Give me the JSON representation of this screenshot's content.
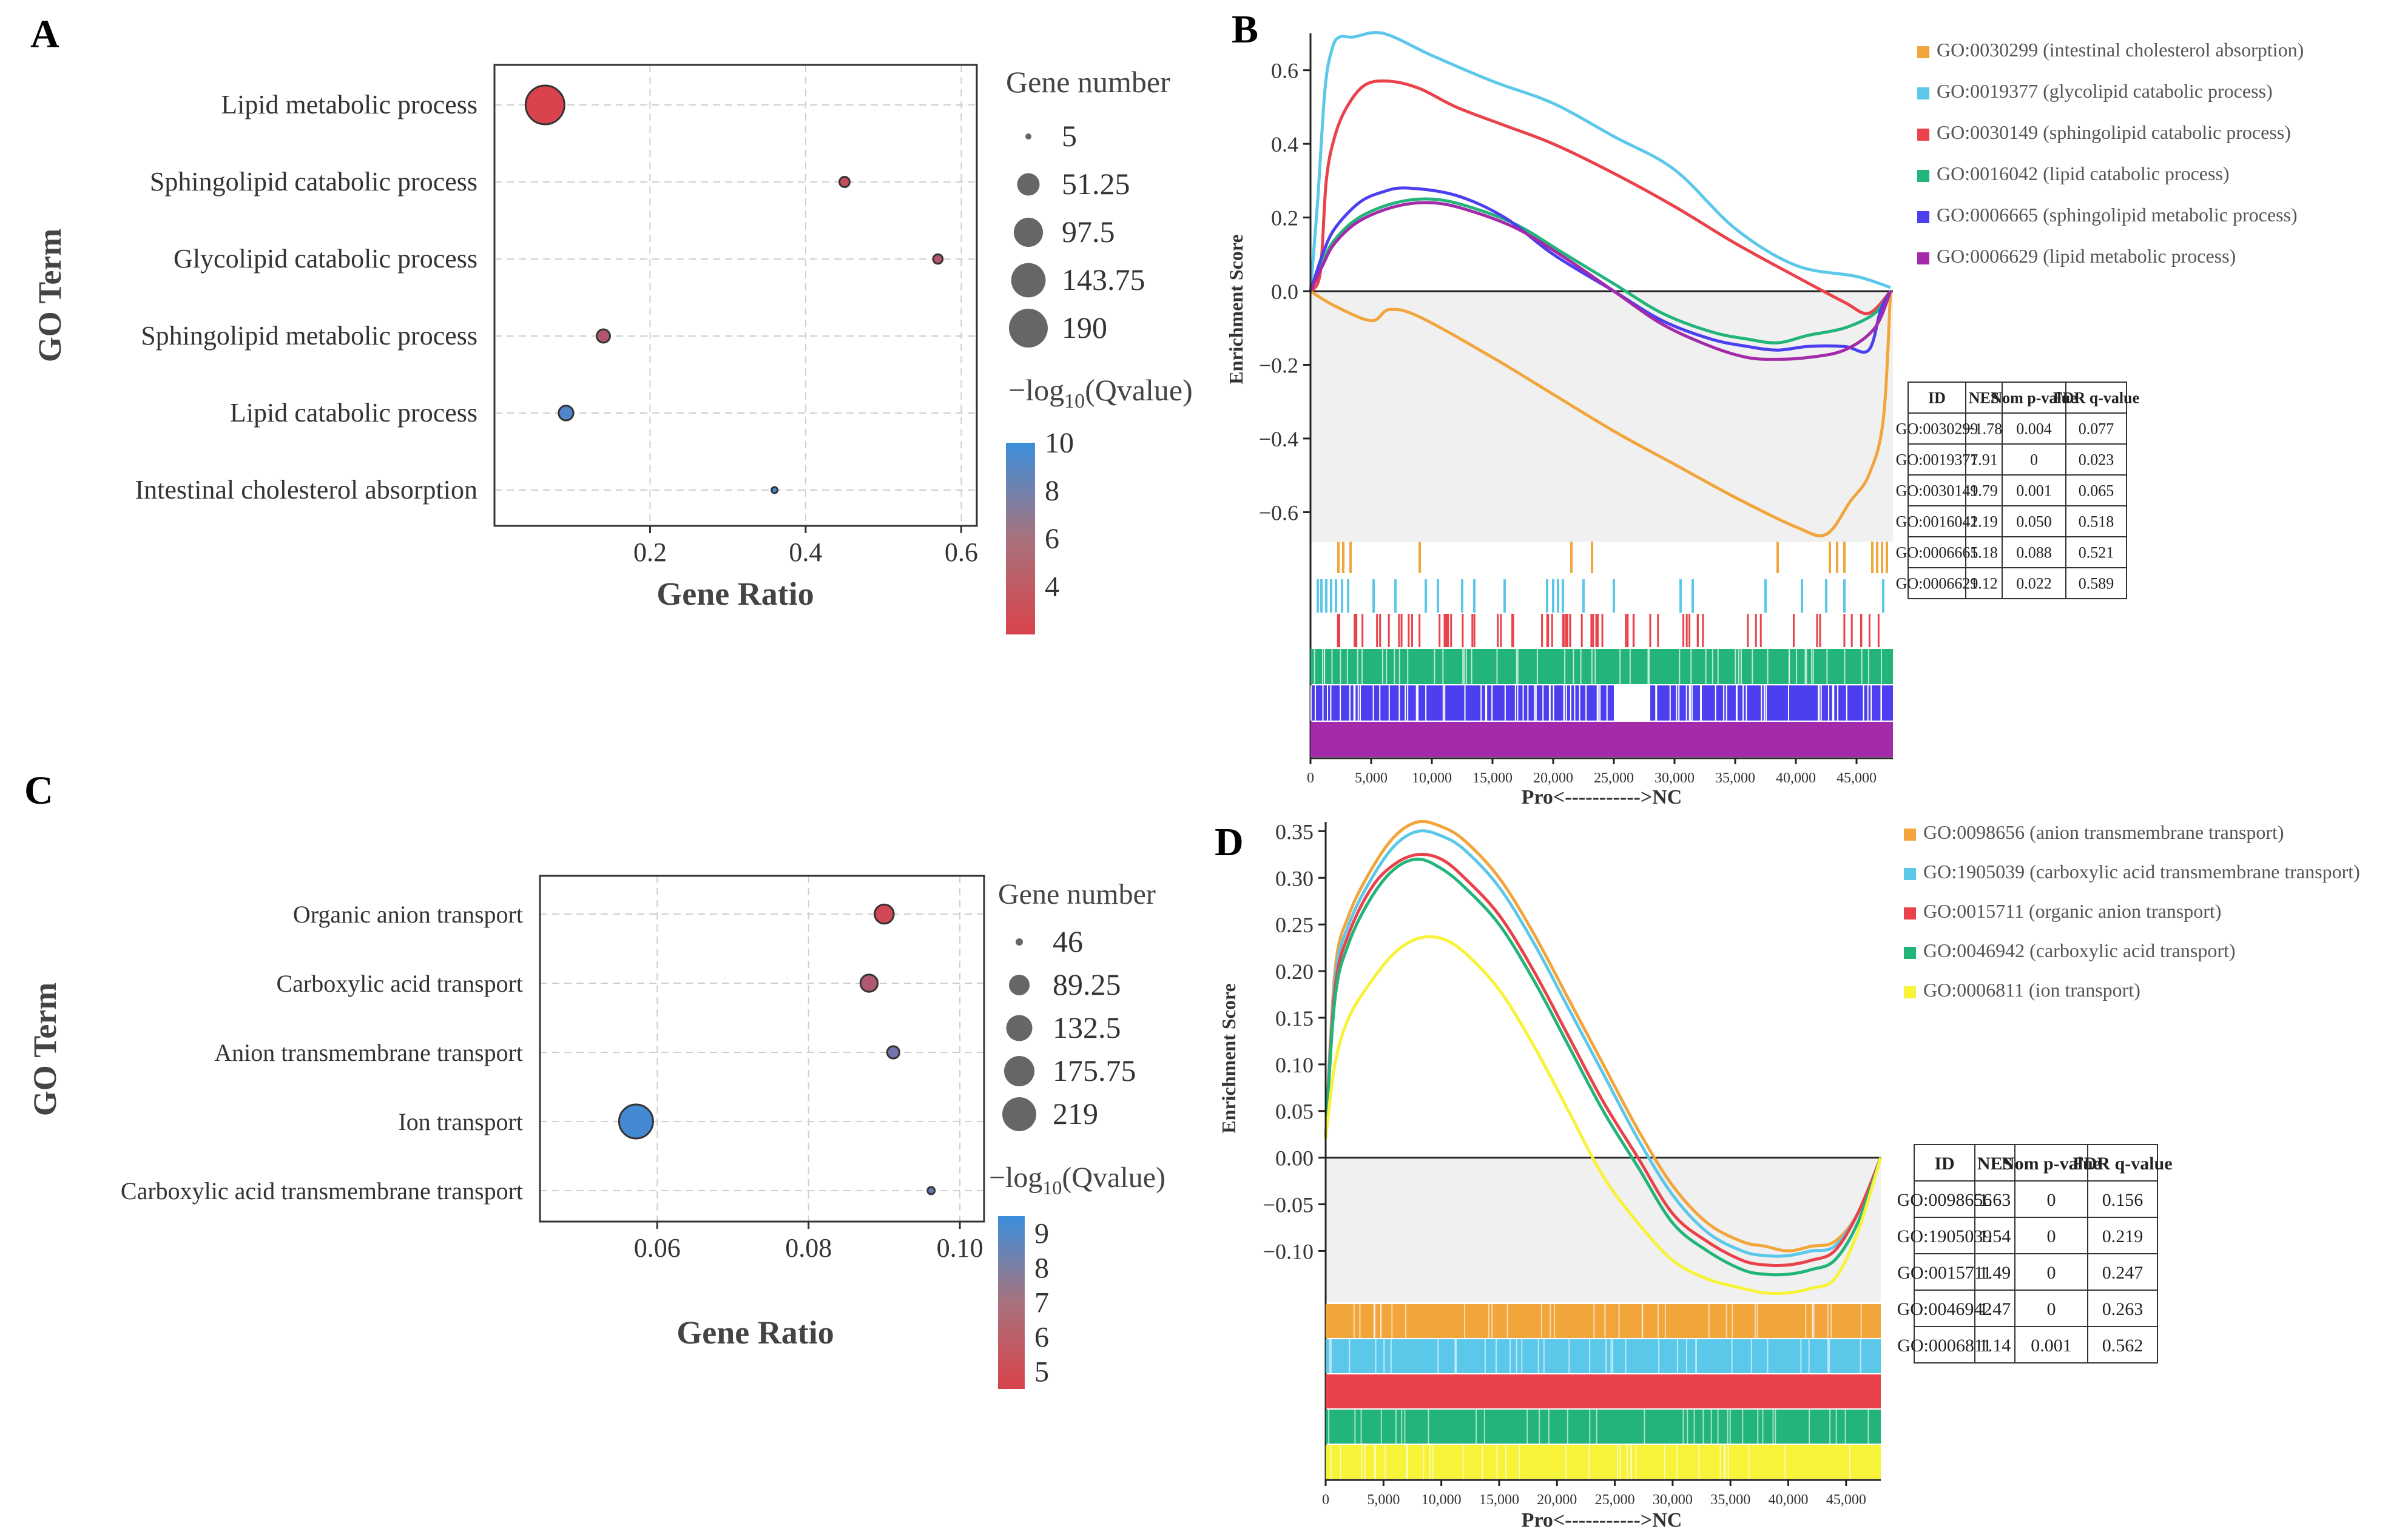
{
  "panel_labels": {
    "A": "A",
    "B": "B",
    "C": "C",
    "D": "D"
  },
  "colors": {
    "orange": "#f2a53b",
    "cyan": "#5bc8ea",
    "red": "#e9424b",
    "green": "#23b47a",
    "blue": "#4b3ff0",
    "purple": "#a32aa8",
    "yellow": "#f7f338",
    "dot_low": "#d9434b",
    "dot_high": "#3b8fdc",
    "shade": "#f0f0f0"
  },
  "chart_data": [
    {
      "id": "A",
      "type": "scatter",
      "title": "",
      "xlabel": "Gene Ratio",
      "ylabel": "GO Term",
      "xlim": [
        0.0,
        0.62
      ],
      "xticks": [
        0.2,
        0.4,
        0.6
      ],
      "xtick_labels": [
        "0.2",
        "0.4",
        "0.6"
      ],
      "categories": [
        "Lipid metabolic process",
        "Sphingolipid catabolic process",
        "Glycolipid catabolic process",
        "Sphingolipid metabolic process",
        "Lipid catabolic process",
        "Intestinal cholesterol absorption"
      ],
      "gene_ratio": [
        0.065,
        0.45,
        0.57,
        0.14,
        0.092,
        0.36
      ],
      "gene_number": [
        190,
        8,
        7,
        14,
        18,
        5
      ],
      "neglog10_qvalue": [
        2.0,
        3.0,
        3.8,
        4.0,
        9.0,
        9.5
      ],
      "size_legend": {
        "title": "Gene number",
        "values": [
          5,
          51.25,
          97.5,
          143.75,
          190
        ],
        "labels": [
          "5",
          "51.25",
          "97.5",
          "143.75",
          "190"
        ]
      },
      "color_legend": {
        "title_prefix": "−log",
        "title_sub": "10",
        "title_suffix": "(Qvalue)",
        "range": [
          2,
          10
        ],
        "ticks": [
          10,
          8,
          6,
          4
        ],
        "tick_labels": [
          "10",
          "8",
          "6",
          "4"
        ]
      }
    },
    {
      "id": "B",
      "type": "line",
      "title": "",
      "xlabel": "Pro<----------->NC",
      "ylabel": "Enrichment Score",
      "xlim": [
        0,
        48000
      ],
      "ylim": [
        -0.68,
        0.7
      ],
      "yticks": [
        0.6,
        0.4,
        0.2,
        0.0,
        -0.2,
        -0.4,
        -0.6
      ],
      "ytick_labels": [
        "0.6",
        "0.4",
        "0.2",
        "0.0",
        "−0.2",
        "−0.4",
        "−0.6"
      ],
      "xticks": [
        0,
        5000,
        10000,
        15000,
        20000,
        25000,
        30000,
        35000,
        40000,
        45000
      ],
      "xtick_labels": [
        "0",
        "5,000",
        "10,000",
        "15,000",
        "20,000",
        "25,000",
        "30,000",
        "35,000",
        "40,000",
        "45,000"
      ],
      "legend": [
        "GO:0030299 (intestinal cholesterol absorption)",
        "GO:0019377 (glycolipid catabolic process)",
        "GO:0030149 (sphingolipid catabolic process)",
        "GO:0016042 (lipid catabolic process)",
        "GO:0006665 (sphingolipid metabolic process)",
        "GO:0006629 (lipid metabolic process)"
      ],
      "series": [
        {
          "name": "GO:0030299",
          "color": "orange",
          "x": [
            0,
            2000,
            5000,
            6500,
            9000,
            15000,
            20000,
            25000,
            30000,
            35000,
            40000,
            42500,
            44500,
            46000,
            47200,
            47800
          ],
          "y": [
            0.0,
            -0.04,
            -0.08,
            -0.05,
            -0.07,
            -0.18,
            -0.28,
            -0.38,
            -0.47,
            -0.56,
            -0.64,
            -0.66,
            -0.57,
            -0.5,
            -0.35,
            0.0
          ]
        },
        {
          "name": "GO:0019377",
          "color": "cyan",
          "x": [
            0,
            600,
            1200,
            1800,
            2400,
            3500,
            6000,
            10000,
            15000,
            20000,
            25000,
            30000,
            35000,
            40000,
            45000,
            47800
          ],
          "y": [
            0.0,
            0.25,
            0.55,
            0.66,
            0.69,
            0.69,
            0.7,
            0.64,
            0.57,
            0.51,
            0.42,
            0.33,
            0.17,
            0.07,
            0.04,
            0.01
          ]
        },
        {
          "name": "GO:0030149",
          "color": "red",
          "x": [
            0,
            800,
            1300,
            2000,
            3000,
            4500,
            6500,
            9000,
            12000,
            16000,
            20000,
            25000,
            30000,
            35000,
            40000,
            44000,
            46000,
            47800
          ],
          "y": [
            0.0,
            0.05,
            0.3,
            0.42,
            0.5,
            0.56,
            0.57,
            0.55,
            0.5,
            0.45,
            0.4,
            0.32,
            0.23,
            0.13,
            0.04,
            -0.03,
            -0.06,
            0.0
          ]
        },
        {
          "name": "GO:0016042",
          "color": "green",
          "x": [
            0,
            1000,
            2000,
            4000,
            7000,
            10000,
            13000,
            17000,
            21000,
            25000,
            29000,
            33000,
            36000,
            38500,
            41000,
            44000,
            46500,
            47800
          ],
          "y": [
            0.0,
            0.08,
            0.14,
            0.2,
            0.24,
            0.25,
            0.23,
            0.18,
            0.1,
            0.02,
            -0.06,
            -0.11,
            -0.13,
            -0.14,
            -0.12,
            -0.1,
            -0.06,
            0.0
          ]
        },
        {
          "name": "GO:0006665",
          "color": "blue",
          "x": [
            0,
            1000,
            2000,
            4000,
            6000,
            8000,
            12000,
            16000,
            20000,
            25000,
            29000,
            33000,
            36000,
            38500,
            41000,
            44000,
            46000,
            47000,
            47800
          ],
          "y": [
            0.0,
            0.1,
            0.17,
            0.24,
            0.27,
            0.28,
            0.26,
            0.2,
            0.1,
            0.0,
            -0.08,
            -0.13,
            -0.15,
            -0.16,
            -0.15,
            -0.15,
            -0.16,
            -0.05,
            0.0
          ]
        },
        {
          "name": "GO:0006629",
          "color": "purple",
          "x": [
            0,
            1000,
            2000,
            4000,
            7000,
            10000,
            13000,
            17000,
            21000,
            25000,
            29000,
            33000,
            36000,
            38500,
            41000,
            44000,
            46500,
            47800
          ],
          "y": [
            0.0,
            0.07,
            0.13,
            0.19,
            0.23,
            0.24,
            0.22,
            0.17,
            0.09,
            0.0,
            -0.09,
            -0.15,
            -0.18,
            -0.185,
            -0.18,
            -0.16,
            -0.1,
            0.0
          ]
        }
      ],
      "barcodes": [
        {
          "color": "orange",
          "hits": [
            2300,
            2700,
            3300,
            9000,
            21500,
            23200,
            38500,
            42800,
            43400,
            44000,
            46300,
            46700,
            47100,
            47500
          ]
        },
        {
          "color": "cyan",
          "hits": [
            600,
            900,
            1300,
            1700,
            2100,
            2600,
            3100,
            5200,
            7000,
            9500,
            10500,
            12500,
            13500,
            16000,
            19500,
            20000,
            20400,
            20800,
            22500,
            25000,
            30500,
            31500,
            37500,
            40500,
            42500,
            44000,
            47200
          ]
        }
      ],
      "table": {
        "headers": [
          "ID",
          "NES",
          "Nom p-value",
          "FDR q-value"
        ],
        "rows": [
          [
            "GO:0030299",
            "−1.78",
            "0.004",
            "0.077"
          ],
          [
            "GO:0019377",
            "1.91",
            "0",
            "0.023"
          ],
          [
            "GO:0030149",
            "1.79",
            "0.001",
            "0.065"
          ],
          [
            "GO:0016042",
            "1.19",
            "0.050",
            "0.518"
          ],
          [
            "GO:0006665",
            "1.18",
            "0.088",
            "0.521"
          ],
          [
            "GO:0006629",
            "1.12",
            "0.022",
            "0.589"
          ]
        ]
      }
    },
    {
      "id": "C",
      "type": "scatter",
      "title": "",
      "xlabel": "Gene Ratio",
      "ylabel": "GO Term",
      "xlim": [
        0.0445,
        0.1032
      ],
      "xticks": [
        0.06,
        0.08,
        0.1
      ],
      "xtick_labels": [
        "0.06",
        "0.08",
        "0.10"
      ],
      "categories": [
        "Organic anion transport",
        "Carboxylic acid transport",
        "Anion transmembrane transport",
        "Ion transport",
        "Carboxylic acid transmembrane transport"
      ],
      "gene_ratio": [
        0.09,
        0.088,
        0.0912,
        0.0572,
        0.0962
      ],
      "gene_number": [
        80,
        70,
        52,
        219,
        46
      ],
      "neglog10_qvalue": [
        4.8,
        5.8,
        7.8,
        9.2,
        8.2
      ],
      "size_legend": {
        "title": "Gene number",
        "values": [
          46,
          89.25,
          132.5,
          175.75,
          219
        ],
        "labels": [
          "46",
          "89.25",
          "132.5",
          "175.75",
          "219"
        ]
      },
      "color_legend": {
        "title_prefix": "−log",
        "title_sub": "10",
        "title_suffix": "(Qvalue)",
        "range": [
          4.5,
          9.5
        ],
        "ticks": [
          9,
          8,
          7,
          6,
          5
        ],
        "tick_labels": [
          "9",
          "8",
          "7",
          "6",
          "5"
        ]
      }
    },
    {
      "id": "D",
      "type": "line",
      "title": "",
      "xlabel": "Pro<----------->NC",
      "ylabel": "Enrichment Score",
      "xlim": [
        0,
        48000
      ],
      "ylim": [
        -0.155,
        0.36
      ],
      "yticks": [
        0.35,
        0.3,
        0.25,
        0.2,
        0.15,
        0.1,
        0.05,
        0.0,
        -0.05,
        -0.1
      ],
      "ytick_labels": [
        "0.35",
        "0.30",
        "0.25",
        "0.20",
        "0.15",
        "0.10",
        "0.05",
        "0.00",
        "−0.05",
        "−0.10"
      ],
      "xticks": [
        0,
        5000,
        10000,
        15000,
        20000,
        25000,
        30000,
        35000,
        40000,
        45000
      ],
      "xtick_labels": [
        "0",
        "5,000",
        "10,000",
        "15,000",
        "20,000",
        "25,000",
        "30,000",
        "35,000",
        "40,000",
        "45,000"
      ],
      "legend": [
        "GO:0098656 (anion transmembrane transport)",
        "GO:1905039 (carboxylic acid transmembrane transport)",
        "GO:0015711 (organic anion transport)",
        "GO:0046942 (carboxylic acid transport)",
        "GO:0006811 (ion transport)"
      ],
      "series": [
        {
          "name": "GO:0098656",
          "color": "orange",
          "x": [
            0,
            800,
            2000,
            4000,
            6000,
            8000,
            10000,
            12000,
            15000,
            18000,
            21000,
            24000,
            27000,
            30000,
            33000,
            36000,
            38000,
            40000,
            42000,
            44000,
            46000,
            48000
          ],
          "y": [
            0.02,
            0.2,
            0.26,
            0.31,
            0.345,
            0.36,
            0.355,
            0.34,
            0.3,
            0.24,
            0.17,
            0.1,
            0.03,
            -0.03,
            -0.07,
            -0.09,
            -0.095,
            -0.1,
            -0.095,
            -0.09,
            -0.06,
            0.0
          ]
        },
        {
          "name": "GO:1905039",
          "color": "cyan",
          "x": [
            0,
            800,
            2000,
            4000,
            6000,
            8000,
            10000,
            12000,
            15000,
            18000,
            21000,
            24000,
            27000,
            30000,
            33000,
            36000,
            38000,
            40000,
            42000,
            44000,
            46000,
            48000
          ],
          "y": [
            0.02,
            0.19,
            0.25,
            0.3,
            0.335,
            0.35,
            0.345,
            0.33,
            0.29,
            0.23,
            0.16,
            0.09,
            0.02,
            -0.04,
            -0.08,
            -0.1,
            -0.105,
            -0.105,
            -0.1,
            -0.095,
            -0.06,
            0.0
          ]
        },
        {
          "name": "GO:0015711",
          "color": "red",
          "x": [
            0,
            800,
            2000,
            4000,
            6000,
            8000,
            10000,
            12000,
            15000,
            18000,
            21000,
            24000,
            27000,
            30000,
            33000,
            36000,
            38000,
            40000,
            42000,
            44000,
            46000,
            48000
          ],
          "y": [
            0.02,
            0.18,
            0.24,
            0.29,
            0.315,
            0.325,
            0.32,
            0.3,
            0.26,
            0.2,
            0.13,
            0.06,
            0.0,
            -0.06,
            -0.09,
            -0.11,
            -0.115,
            -0.115,
            -0.11,
            -0.1,
            -0.06,
            0.0
          ]
        },
        {
          "name": "GO:0046942",
          "color": "green",
          "x": [
            0,
            800,
            2000,
            4000,
            6000,
            8000,
            10000,
            12000,
            15000,
            18000,
            21000,
            24000,
            27000,
            30000,
            33000,
            36000,
            38000,
            40000,
            42000,
            44000,
            46000,
            48000
          ],
          "y": [
            0.02,
            0.17,
            0.23,
            0.28,
            0.31,
            0.32,
            0.31,
            0.29,
            0.25,
            0.19,
            0.12,
            0.05,
            -0.01,
            -0.07,
            -0.1,
            -0.12,
            -0.125,
            -0.125,
            -0.12,
            -0.11,
            -0.07,
            0.0
          ]
        },
        {
          "name": "GO:0006811",
          "color": "yellow",
          "x": [
            0,
            800,
            2000,
            4000,
            6000,
            8000,
            10000,
            12000,
            15000,
            18000,
            21000,
            24000,
            27000,
            30000,
            33000,
            36000,
            38000,
            40000,
            42000,
            44000,
            46000,
            48000
          ],
          "y": [
            0.02,
            0.1,
            0.15,
            0.19,
            0.22,
            0.235,
            0.235,
            0.22,
            0.18,
            0.12,
            0.05,
            -0.02,
            -0.07,
            -0.11,
            -0.13,
            -0.14,
            -0.145,
            -0.145,
            -0.14,
            -0.13,
            -0.08,
            0.0
          ]
        }
      ],
      "table": {
        "headers": [
          "ID",
          "NES",
          "Nom p-value",
          "FDR q-value"
        ],
        "rows": [
          [
            "GO:0098656",
            "1.63",
            "0",
            "0.156"
          ],
          [
            "GO:1905039",
            "1.54",
            "0",
            "0.219"
          ],
          [
            "GO:0015711",
            "1.49",
            "0",
            "0.247"
          ],
          [
            "GO:0046942",
            "1.47",
            "0",
            "0.263"
          ],
          [
            "GO:0006811",
            "1.14",
            "0.001",
            "0.562"
          ]
        ]
      }
    }
  ]
}
